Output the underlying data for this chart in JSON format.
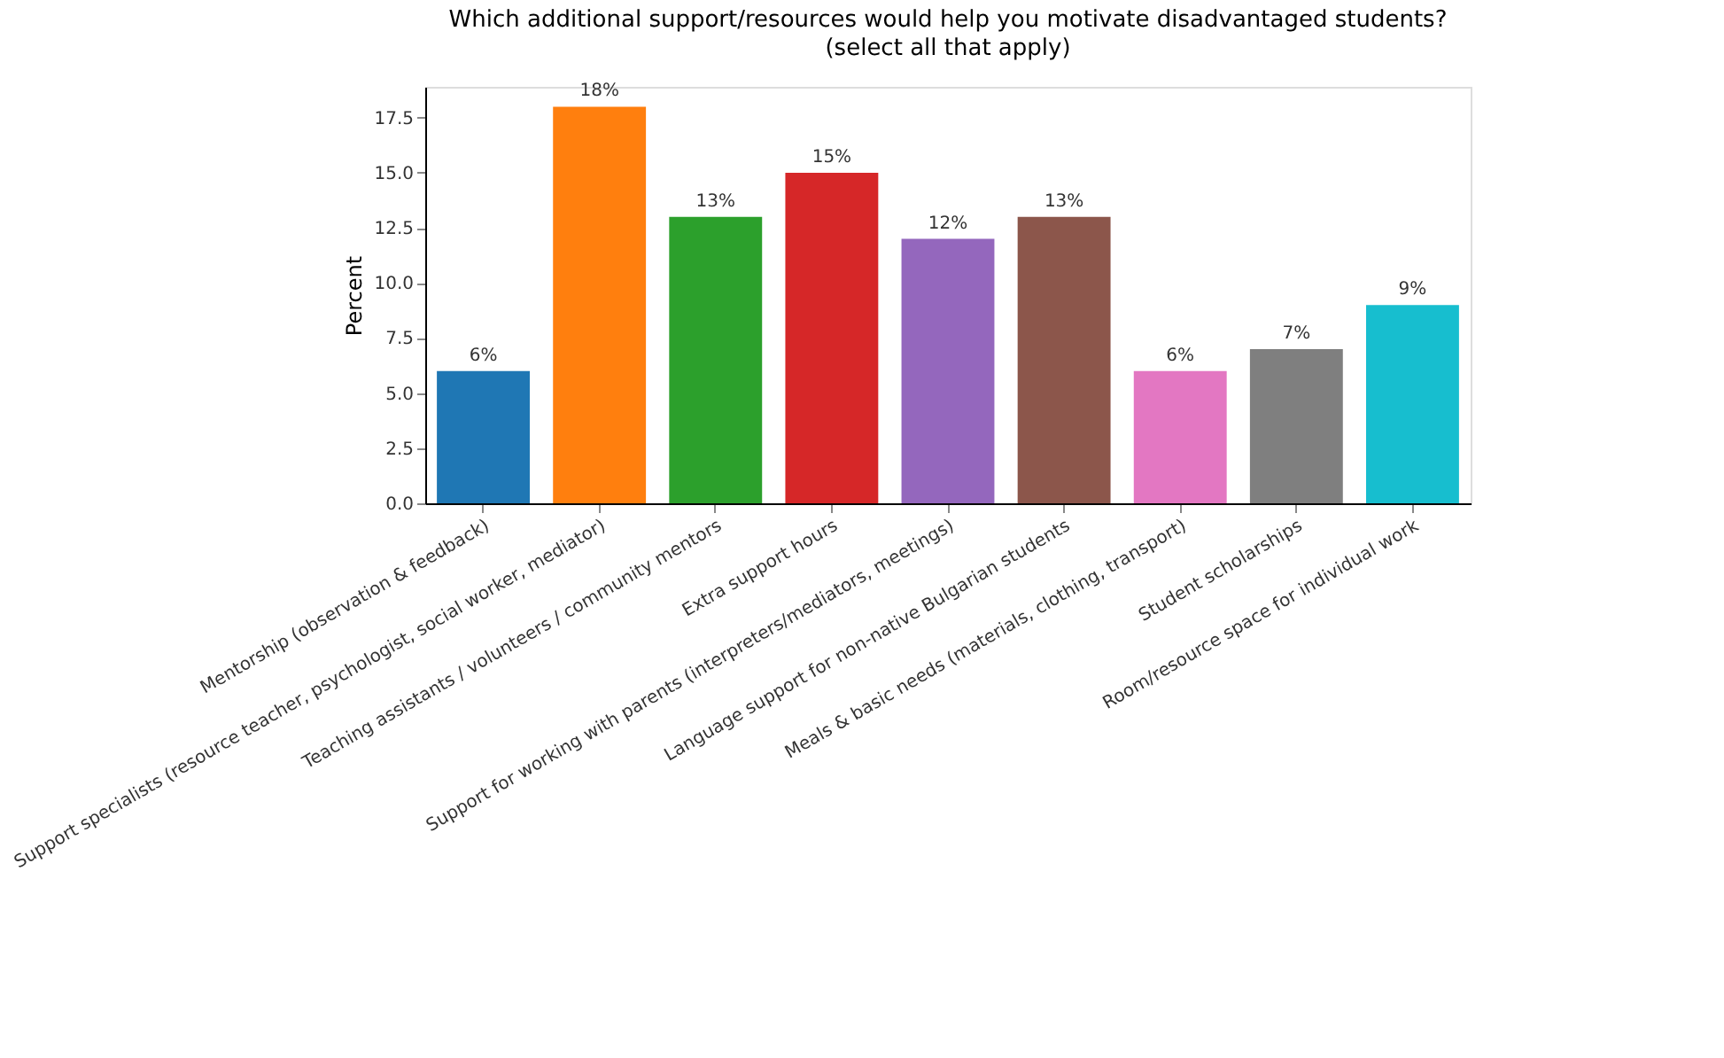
{
  "chart_data": {
    "type": "bar",
    "title": "Which additional support/resources would help you motivate disadvantaged students?",
    "subtitle": "(select all that apply)",
    "ylabel": "Percent",
    "categories": [
      "Mentorship (observation & feedback)",
      "Support specialists (resource teacher, psychologist, social worker, mediator)",
      "Teaching assistants / volunteers / community mentors",
      "Extra support hours",
      "Support for working with parents (interpreters/mediators, meetings)",
      "Language support for non-native Bulgarian students",
      "Meals & basic needs (materials, clothing, transport)",
      "Student scholarships",
      "Room/resource space for individual work"
    ],
    "values": [
      6,
      18,
      13,
      15,
      12,
      13,
      6,
      7,
      9
    ],
    "value_labels": [
      "6%",
      "18%",
      "13%",
      "15%",
      "12%",
      "13%",
      "6%",
      "7%",
      "9%"
    ],
    "colors": [
      "#1f77b4",
      "#ff7f0e",
      "#2ca02c",
      "#d62728",
      "#9467bd",
      "#8c564b",
      "#e377c2",
      "#7f7f7f",
      "#17becf"
    ],
    "ylim": [
      0,
      18.9
    ],
    "yticks": [
      {
        "value": 0,
        "label": "0.0"
      },
      {
        "value": 2.5,
        "label": "2.5"
      },
      {
        "value": 5,
        "label": "5.0"
      },
      {
        "value": 7.5,
        "label": "7.5"
      },
      {
        "value": 10,
        "label": "10.0"
      },
      {
        "value": 12.5,
        "label": "12.5"
      },
      {
        "value": 15,
        "label": "15.0"
      },
      {
        "value": 17.5,
        "label": "17.5"
      }
    ],
    "grid": false
  }
}
